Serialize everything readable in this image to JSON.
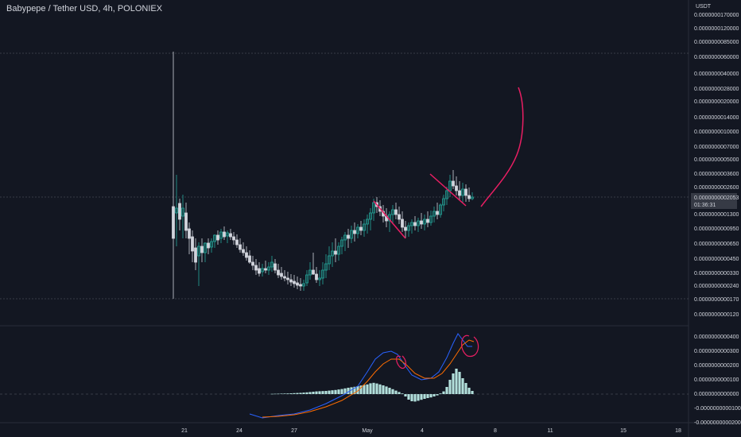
{
  "header": {
    "title": "Babypepe / Tether USD, 4h, POLONIEX"
  },
  "price_axis": {
    "currency": "USDT",
    "tick_labels": [
      "0.0000000170000",
      "0.0000000120000",
      "0.0000000085000",
      "0.0000000060000",
      "0.0000000040000",
      "0.0000000028000",
      "0.0000000020000",
      "0.0000000014000",
      "0.0000000010000",
      "0.0000000007000",
      "0.0000000005000",
      "0.0000000003600",
      "0.0000000002600",
      "0.0000000001300",
      "0.0000000000950",
      "0.0000000000650",
      "0.0000000000450",
      "0.0000000000330",
      "0.0000000000240",
      "0.0000000000170",
      "0.0000000000120"
    ],
    "last_price": "0.0000000002053",
    "countdown": "01:36:31"
  },
  "indicator_axis": {
    "tick_labels": [
      "0.0000000000400",
      "0.0000000000300",
      "0.0000000000200",
      "0.0000000000100",
      "0.0000000000000",
      "-0.0000000000100",
      "-0.0000000000200"
    ]
  },
  "time_axis": {
    "tick_labels": [
      "21",
      "24",
      "27",
      "May",
      "4",
      "8",
      "11",
      "15",
      "18"
    ]
  },
  "colors": {
    "background": "#131722",
    "up_candle": "#26a69a",
    "down_candle": "#d1d4dc",
    "histogram": "#b2dfdb",
    "macd_line": "#2962ff",
    "signal_line": "#ff6d00",
    "drawing": "#e91e63",
    "text": "#d1d4dc",
    "grid_dashed": "#5d606b"
  },
  "chart_data": [
    {
      "type": "candlestick",
      "title": "Babypepe / Tether USD, 4h, POLONIEX",
      "ylabel": "USDT",
      "y_scale": "log",
      "x_ticks": [
        "21",
        "24",
        "27",
        "May",
        "4",
        "8",
        "11",
        "15",
        "18"
      ],
      "ylim": [
        1.2e-11,
        1.7e-08
      ],
      "last_price": 2.053e-10,
      "summary": "Spike to about 0.000000006 on 21, drift down to about 0.00000000002 by 27, recovery to about 0.00000000015 by 1 May, then rise to about 0.00000000035 around 5 May; last 0.0000000002053.",
      "annotations": [
        "descending pen strokes over two local tops",
        "hand-drawn upward arc projecting a large rise"
      ]
    },
    {
      "type": "line",
      "title": "",
      "series_names": [
        "",
        "",
        ""
      ],
      "ylim": [
        -2e-11,
        4e-11
      ],
      "summary": "Oscillator with histogram; blue and orange lines rise to a first peak near 0.000000000027 around 1 May, dip, then peak near 0.00000000004 around 5 May.",
      "annotations": [
        "circled crossovers near both peaks"
      ]
    }
  ]
}
